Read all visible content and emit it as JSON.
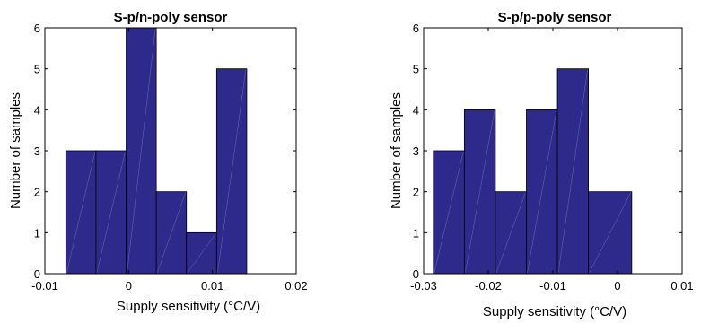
{
  "chart_data": [
    {
      "type": "bar",
      "title": "S-p/n-poly sensor",
      "xlabel": "Supply sensitivity (°C/V)",
      "ylabel": "Number of samples",
      "xlim": [
        -0.01,
        0.02
      ],
      "ylim": [
        0,
        6
      ],
      "xticks": [
        -0.01,
        0,
        0.01,
        0.02
      ],
      "xtick_labels": [
        "-0.01",
        "0",
        "0.01",
        "0.02"
      ],
      "yticks": [
        0,
        1,
        2,
        3,
        4,
        5,
        6
      ],
      "ytick_labels": [
        "0",
        "1",
        "2",
        "3",
        "4",
        "5",
        "6"
      ],
      "bin_edges": [
        -0.0075,
        -0.0039,
        -0.0003,
        0.0033,
        0.0069,
        0.0105,
        0.0141
      ],
      "values": [
        3,
        3,
        6,
        2,
        1,
        5
      ],
      "bar_color": "#2e2a8c",
      "grid": false
    },
    {
      "type": "bar",
      "title": "S-p/p-poly sensor",
      "xlabel": "Supply sensitivity (°C/V)",
      "ylabel": "Number of samples",
      "xlim": [
        -0.03,
        0.01
      ],
      "ylim": [
        0,
        6
      ],
      "xticks": [
        -0.03,
        -0.02,
        -0.01,
        0,
        0.01
      ],
      "xtick_labels": [
        "-0.03",
        "-0.02",
        "-0.01",
        "0",
        "0.01"
      ],
      "yticks": [
        0,
        1,
        2,
        3,
        4,
        5,
        6
      ],
      "ytick_labels": [
        "0",
        "1",
        "2",
        "3",
        "4",
        "5",
        "6"
      ],
      "bin_edges": [
        -0.0285,
        -0.0237,
        -0.0189,
        -0.0141,
        -0.0093,
        -0.0045,
        0.0022
      ],
      "values": [
        3,
        4,
        2,
        4,
        5,
        2
      ],
      "bar_color": "#2e2a8c",
      "grid": false
    }
  ]
}
